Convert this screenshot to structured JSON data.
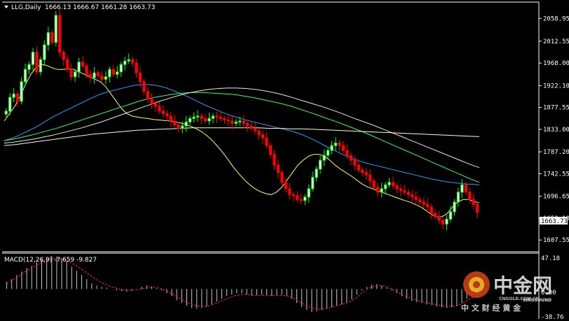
{
  "header": {
    "symbol_label": "LLG,Daily",
    "ohlc": "1666.13 1666.67 1661.28 1663.73"
  },
  "macd_header": "MACD(12,26,9) -7.659 -9.827",
  "current_price_label": "1663.73",
  "macd_axis": {
    "top": "47.18",
    "zero": "0.00",
    "bottom": "-38.76"
  },
  "watermark": {
    "brand": "中金网",
    "sub": "中 文 财 经 黄 金",
    "small_logo": "SINOSOUND",
    "domain": "CNGOLD.COM.CN"
  },
  "colors": {
    "bull": "#00ff00",
    "bear": "#ff0000",
    "bull_fill": "#ffffff",
    "bear_fill": "#ff0000",
    "ma_fast": "#ffff66",
    "ma_blue": "#3399ff",
    "ma_green": "#33ff66",
    "ma_white": "#e8e8e8",
    "ma_khaki": "#ffffcc",
    "macd_bar": "#c8c8c8",
    "macd_signal": "#ff2020",
    "axis": "#ffffff",
    "grid": "#333333"
  },
  "chart_data": [
    {
      "type": "candlestick",
      "title": "LLG,Daily",
      "ylim": [
        1595,
        2085
      ],
      "y_ticks": [
        "2058.95",
        "2012.55",
        "1968.00",
        "1922.10",
        "1877.55",
        "1833.00",
        "1787.20",
        "1742.55",
        "1696.65",
        "1652.10",
        "1607.55"
      ],
      "series": [
        {
          "values": [
            1870,
            1898,
            1905,
            1890,
            1930,
            1955,
            1965,
            1990,
            1950,
            1975,
            2005,
            2030,
            2010,
            2065,
            1990,
            1975,
            1955,
            1940,
            1950,
            1970,
            1962,
            1945,
            1938,
            1948,
            1942,
            1935,
            1940,
            1955,
            1945,
            1950,
            1965,
            1972,
            1975,
            1968,
            1948,
            1930,
            1910,
            1895,
            1885,
            1880,
            1870,
            1865,
            1860,
            1850,
            1842,
            1835,
            1840,
            1848,
            1855,
            1858,
            1860,
            1855,
            1850,
            1855,
            1860,
            1858,
            1855,
            1852,
            1850,
            1845,
            1848,
            1850,
            1845,
            1840,
            1835,
            1830,
            1822,
            1815,
            1800,
            1782,
            1760,
            1745,
            1725,
            1712,
            1700,
            1698,
            1690,
            1688,
            1695,
            1712,
            1735,
            1752,
            1770,
            1780,
            1790,
            1800,
            1805,
            1800,
            1790,
            1780,
            1770,
            1760,
            1750,
            1745,
            1740,
            1728,
            1715,
            1705,
            1712,
            1720,
            1725,
            1718,
            1712,
            1708,
            1705,
            1700,
            1695,
            1690,
            1685,
            1680,
            1675,
            1662,
            1655,
            1648,
            1640,
            1650,
            1665,
            1685,
            1705,
            1720,
            1705,
            1690,
            1680,
            1664
          ]
        }
      ],
      "moving_averages": [
        {
          "values": [
            1850,
            1865,
            1880,
            1900,
            1925,
            1945,
            1960,
            1965,
            1963,
            1958,
            1955,
            1955,
            1956,
            1955,
            1950,
            1945,
            1940,
            1935,
            1930,
            1920,
            1905,
            1890,
            1875,
            1865,
            1860,
            1858,
            1856,
            1855,
            1853,
            1852,
            1851,
            1850,
            1848,
            1846,
            1843,
            1839,
            1834,
            1828,
            1820,
            1810,
            1798,
            1785,
            1770,
            1755,
            1742,
            1730,
            1720,
            1712,
            1706,
            1702,
            1700,
            1705,
            1715,
            1730,
            1745,
            1760,
            1770,
            1778,
            1782,
            1782,
            1778,
            1770,
            1760,
            1752,
            1745,
            1738,
            1730,
            1722,
            1716,
            1712,
            1708,
            1704,
            1700,
            1696,
            1692,
            1688,
            1685,
            1680,
            1675,
            1668,
            1660,
            1655,
            1655,
            1662,
            1675,
            1685,
            1690,
            1690,
            1686,
            1683
          ]
        },
        {
          "values": [
            1810,
            1815,
            1822,
            1830,
            1838,
            1848,
            1858,
            1866,
            1874,
            1882,
            1890,
            1898,
            1905,
            1910,
            1914,
            1918,
            1922,
            1924,
            1924,
            1922,
            1918,
            1912,
            1905,
            1898,
            1890,
            1882,
            1875,
            1868,
            1862,
            1857,
            1852,
            1848,
            1844,
            1840,
            1836,
            1832,
            1828,
            1822,
            1815,
            1807,
            1798,
            1790,
            1782,
            1775,
            1769,
            1764,
            1760,
            1756,
            1752,
            1748,
            1744,
            1740,
            1736,
            1732,
            1729,
            1726,
            1724,
            1722,
            1721,
            1720
          ]
        },
        {
          "values": [
            1810,
            1813,
            1817,
            1821,
            1826,
            1831,
            1836,
            1842,
            1848,
            1854,
            1860,
            1866,
            1872,
            1878,
            1884,
            1890,
            1895,
            1899,
            1902,
            1905,
            1907,
            1908,
            1908,
            1907,
            1906,
            1905,
            1903,
            1900,
            1897,
            1893,
            1889,
            1885,
            1880,
            1874,
            1868,
            1862,
            1855,
            1849,
            1842,
            1835,
            1828,
            1820,
            1812,
            1804,
            1796,
            1788,
            1780,
            1772,
            1764,
            1756,
            1748,
            1740,
            1732,
            1725
          ]
        },
        {
          "values": [
            1805,
            1807,
            1810,
            1813,
            1817,
            1821,
            1826,
            1831,
            1836,
            1842,
            1848,
            1855,
            1862,
            1869,
            1876,
            1883,
            1890,
            1896,
            1902,
            1907,
            1911,
            1914,
            1916,
            1917,
            1917,
            1916,
            1914,
            1911,
            1907,
            1902,
            1896,
            1890,
            1884,
            1878,
            1871,
            1864,
            1856,
            1849,
            1842,
            1834,
            1826,
            1818,
            1810,
            1802,
            1794,
            1786,
            1778,
            1770,
            1762,
            1755
          ]
        },
        {
          "values": [
            1800,
            1802,
            1805,
            1808,
            1811,
            1814,
            1817,
            1820,
            1823,
            1825,
            1827,
            1829,
            1831,
            1832,
            1833,
            1834,
            1835,
            1836,
            1836,
            1836,
            1836,
            1836,
            1836,
            1836,
            1835,
            1835,
            1834,
            1834,
            1833,
            1832,
            1831,
            1830,
            1829,
            1828,
            1827,
            1826,
            1825,
            1824,
            1823,
            1822,
            1821,
            1820,
            1819,
            1818
          ]
        }
      ]
    },
    {
      "type": "bar",
      "title": "MACD(12,26,9) -7.659 -9.827",
      "ylim": [
        -38.76,
        47.18
      ],
      "series": [
        {
          "name": "MACD",
          "values": [
            10,
            14,
            20,
            25,
            30,
            33,
            38,
            42,
            45,
            47,
            46,
            44,
            40,
            32,
            26,
            20,
            14,
            8,
            5,
            3,
            2,
            0,
            -2,
            -3,
            -4,
            -2,
            0,
            3,
            5,
            3,
            1,
            -2,
            -6,
            -10,
            -16,
            -20,
            -24,
            -27,
            -28,
            -27,
            -25,
            -22,
            -18,
            -14,
            -10,
            -8,
            -6,
            -6,
            -8,
            -10,
            -9,
            -8,
            -9,
            -10,
            -9,
            -8,
            -10,
            -14,
            -20,
            -26,
            -30,
            -33,
            -32,
            -30,
            -28,
            -26,
            -24,
            -22,
            -20,
            -15,
            -8,
            -2,
            3,
            6,
            7,
            5,
            2,
            -2,
            -6,
            -10,
            -14,
            -17,
            -19,
            -20,
            -22,
            -23,
            -25,
            -26,
            -27,
            -26,
            -25,
            -20,
            -14,
            -9,
            -8
          ]
        },
        {
          "name": "Signal",
          "values": [
            8,
            12,
            16,
            21,
            26,
            30,
            34,
            38,
            41,
            43,
            44,
            43,
            41,
            37,
            33,
            28,
            23,
            18,
            13,
            9,
            6,
            3,
            1,
            -1,
            -2,
            -2,
            -1,
            0,
            2,
            3,
            2,
            0,
            -3,
            -7,
            -11,
            -15,
            -19,
            -22,
            -24,
            -25,
            -25,
            -23,
            -20,
            -17,
            -14,
            -11,
            -9,
            -8,
            -8,
            -9,
            -9,
            -9,
            -9,
            -9,
            -9,
            -9,
            -10,
            -12,
            -16,
            -20,
            -24,
            -27,
            -29,
            -29,
            -28,
            -26,
            -24,
            -22,
            -20,
            -17,
            -12,
            -6,
            -1,
            3,
            5,
            5,
            3,
            0,
            -4,
            -8,
            -11,
            -14,
            -16,
            -18,
            -20,
            -21,
            -23,
            -24,
            -25,
            -25,
            -24,
            -21,
            -17,
            -13,
            -10
          ]
        }
      ]
    }
  ]
}
